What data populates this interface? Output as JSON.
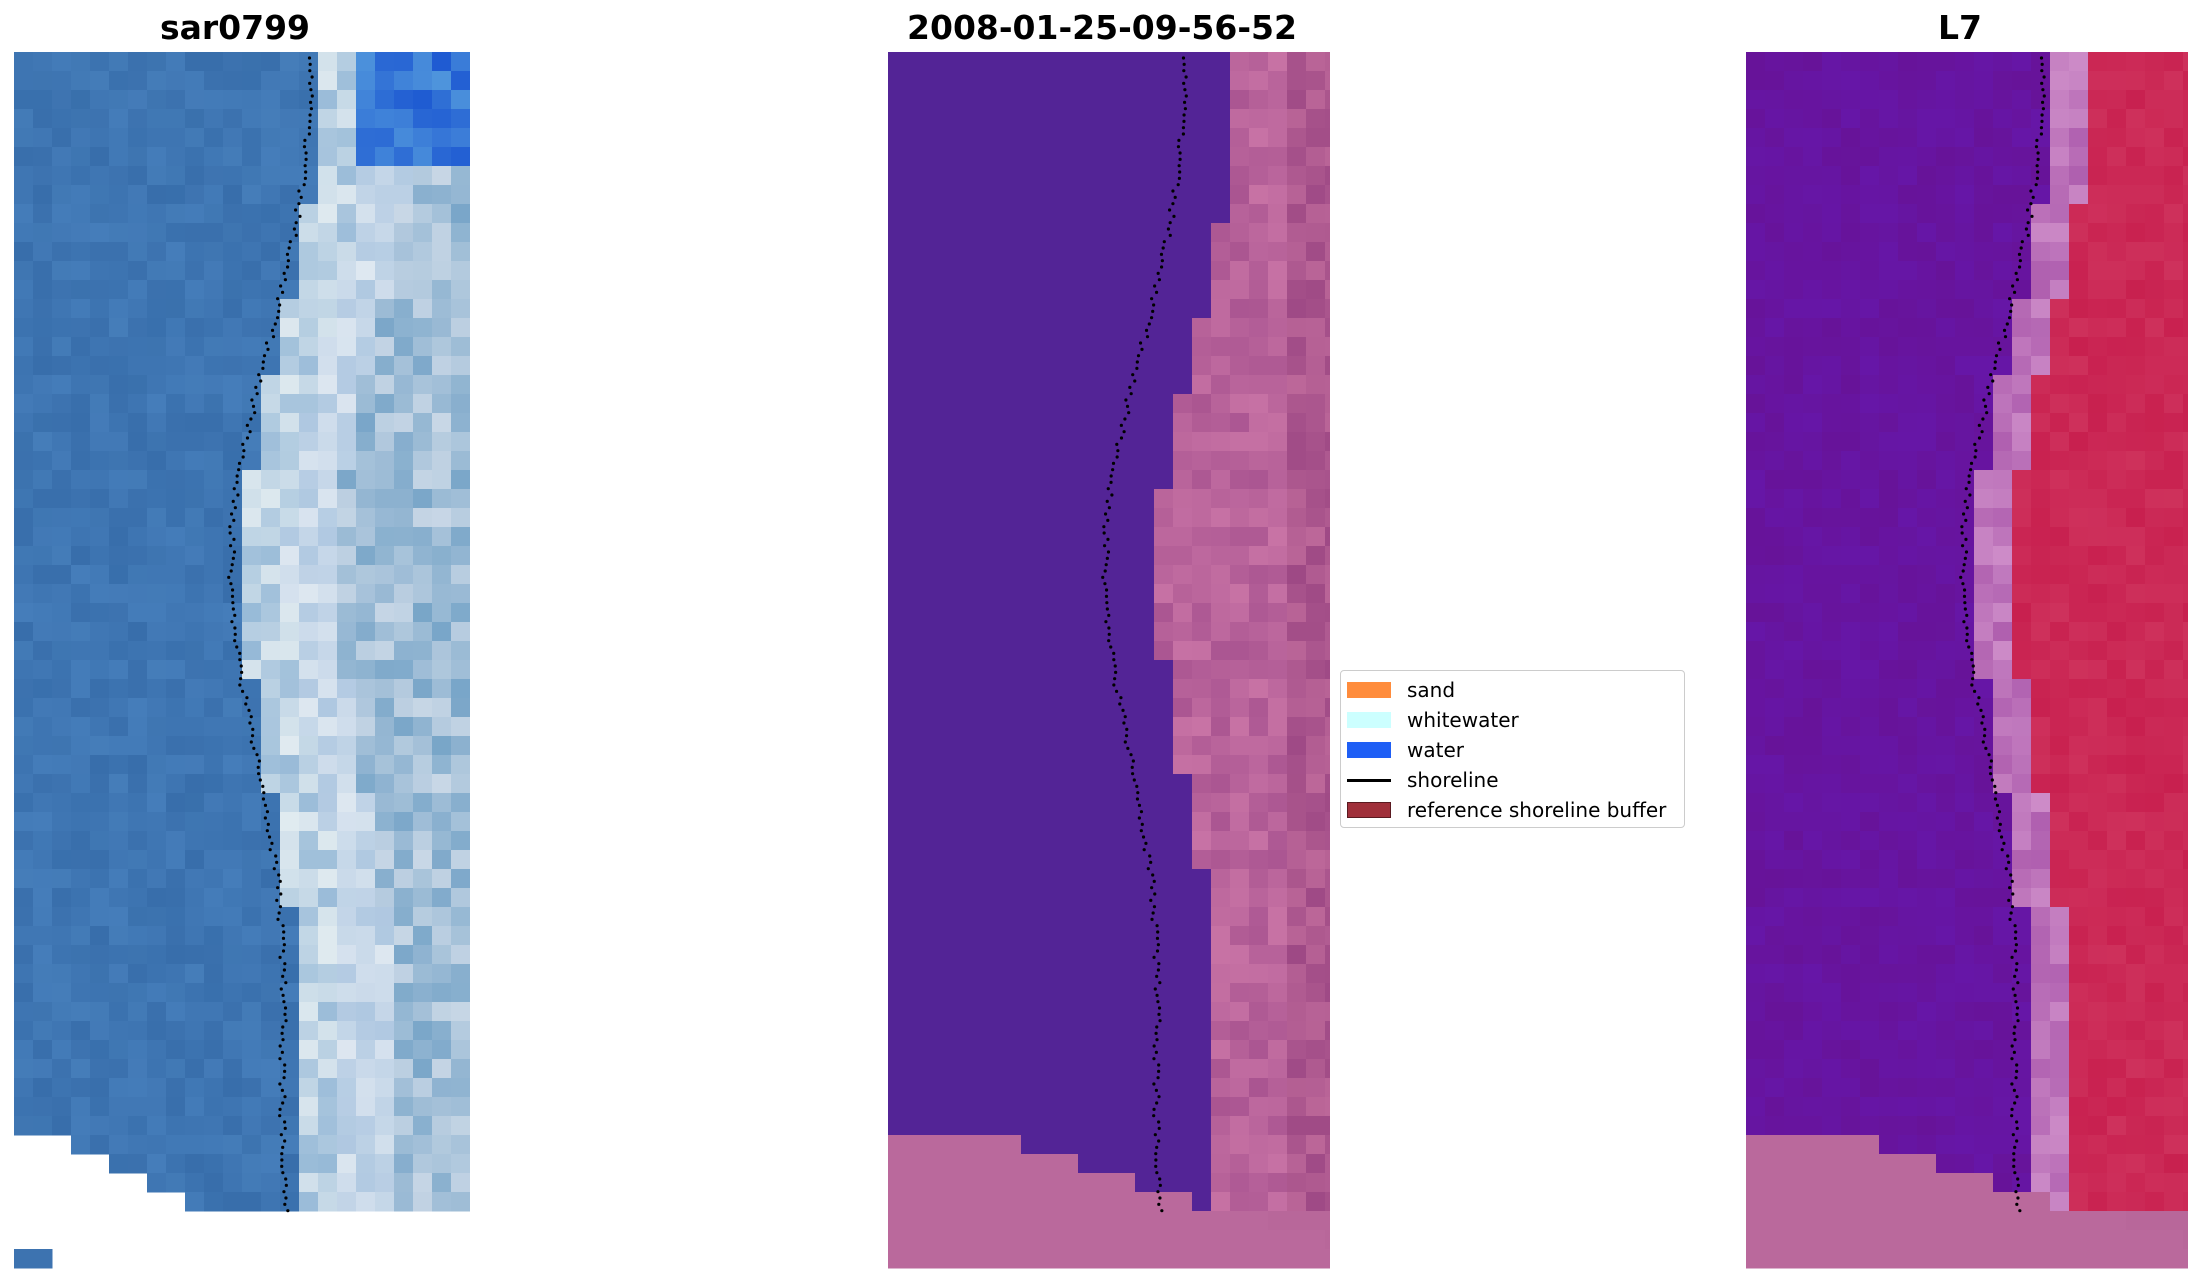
{
  "panels": [
    {
      "id": "rgb",
      "title": "sar0799"
    },
    {
      "id": "classified",
      "title": "2008-01-25-09-56-52"
    },
    {
      "id": "index",
      "title": "L7"
    }
  ],
  "legend": {
    "items": [
      {
        "label": "sand",
        "kind": "patch",
        "color": "#ff8c3c"
      },
      {
        "label": "whitewater",
        "kind": "patch",
        "color": "#ccffff"
      },
      {
        "label": "water",
        "kind": "patch",
        "color": "#1f5ff5"
      },
      {
        "label": "shoreline",
        "kind": "line",
        "color": "#000000"
      },
      {
        "label": "reference shoreline buffer",
        "kind": "patch",
        "color": "#a0303a"
      }
    ]
  },
  "colors": {
    "water_rgb": "#3d73b0",
    "classified_water": "#532496",
    "classified_land": "#b8679a",
    "index_water": "#6e1aa0",
    "index_land": "#c8204f"
  }
}
